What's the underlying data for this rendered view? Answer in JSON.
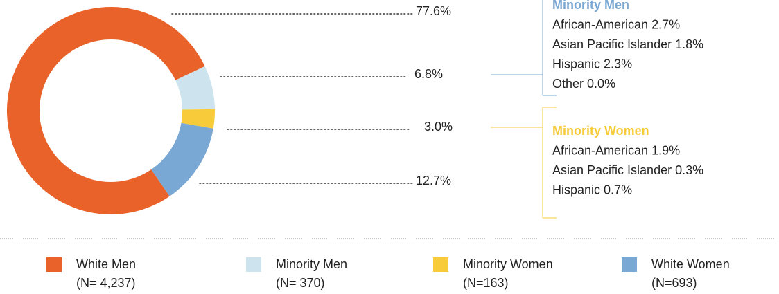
{
  "chart_data": {
    "type": "donut",
    "categories": [
      "White Men",
      "Minority Men",
      "Minority Women",
      "White Women"
    ],
    "values": [
      77.6,
      6.8,
      3.0,
      12.7
    ],
    "value_labels": [
      "77.6%",
      "6.8%",
      "3.0%",
      "12.7%"
    ],
    "colors": [
      "#e8622a",
      "#cde4ef",
      "#f7cb3a",
      "#7aa8d4"
    ],
    "legend_notes": [
      "(N= 4,237)",
      "(N= 370)",
      "(N=163)",
      "(N=693)"
    ],
    "breakdowns": [
      {
        "title": "Minority Men",
        "color": "#7aa8d4",
        "items": [
          {
            "name": "African-American",
            "value": 2.7,
            "value_label": "2.7%"
          },
          {
            "name": "Asian Pacific Islander",
            "value": 1.8,
            "value_label": "1.8%"
          },
          {
            "name": "Hispanic",
            "value": 2.3,
            "value_label": "2.3%"
          },
          {
            "name": "Other",
            "value": 0.0,
            "value_label": "0.0%"
          }
        ]
      },
      {
        "title": "Minority Women",
        "color": "#f7cb3a",
        "items": [
          {
            "name": "African-American",
            "value": 1.9,
            "value_label": "1.9%"
          },
          {
            "name": "Asian Pacific Islander",
            "value": 0.3,
            "value_label": "0.3%"
          },
          {
            "name": "Hispanic",
            "value": 0.7,
            "value_label": "0.7%"
          }
        ]
      }
    ]
  }
}
